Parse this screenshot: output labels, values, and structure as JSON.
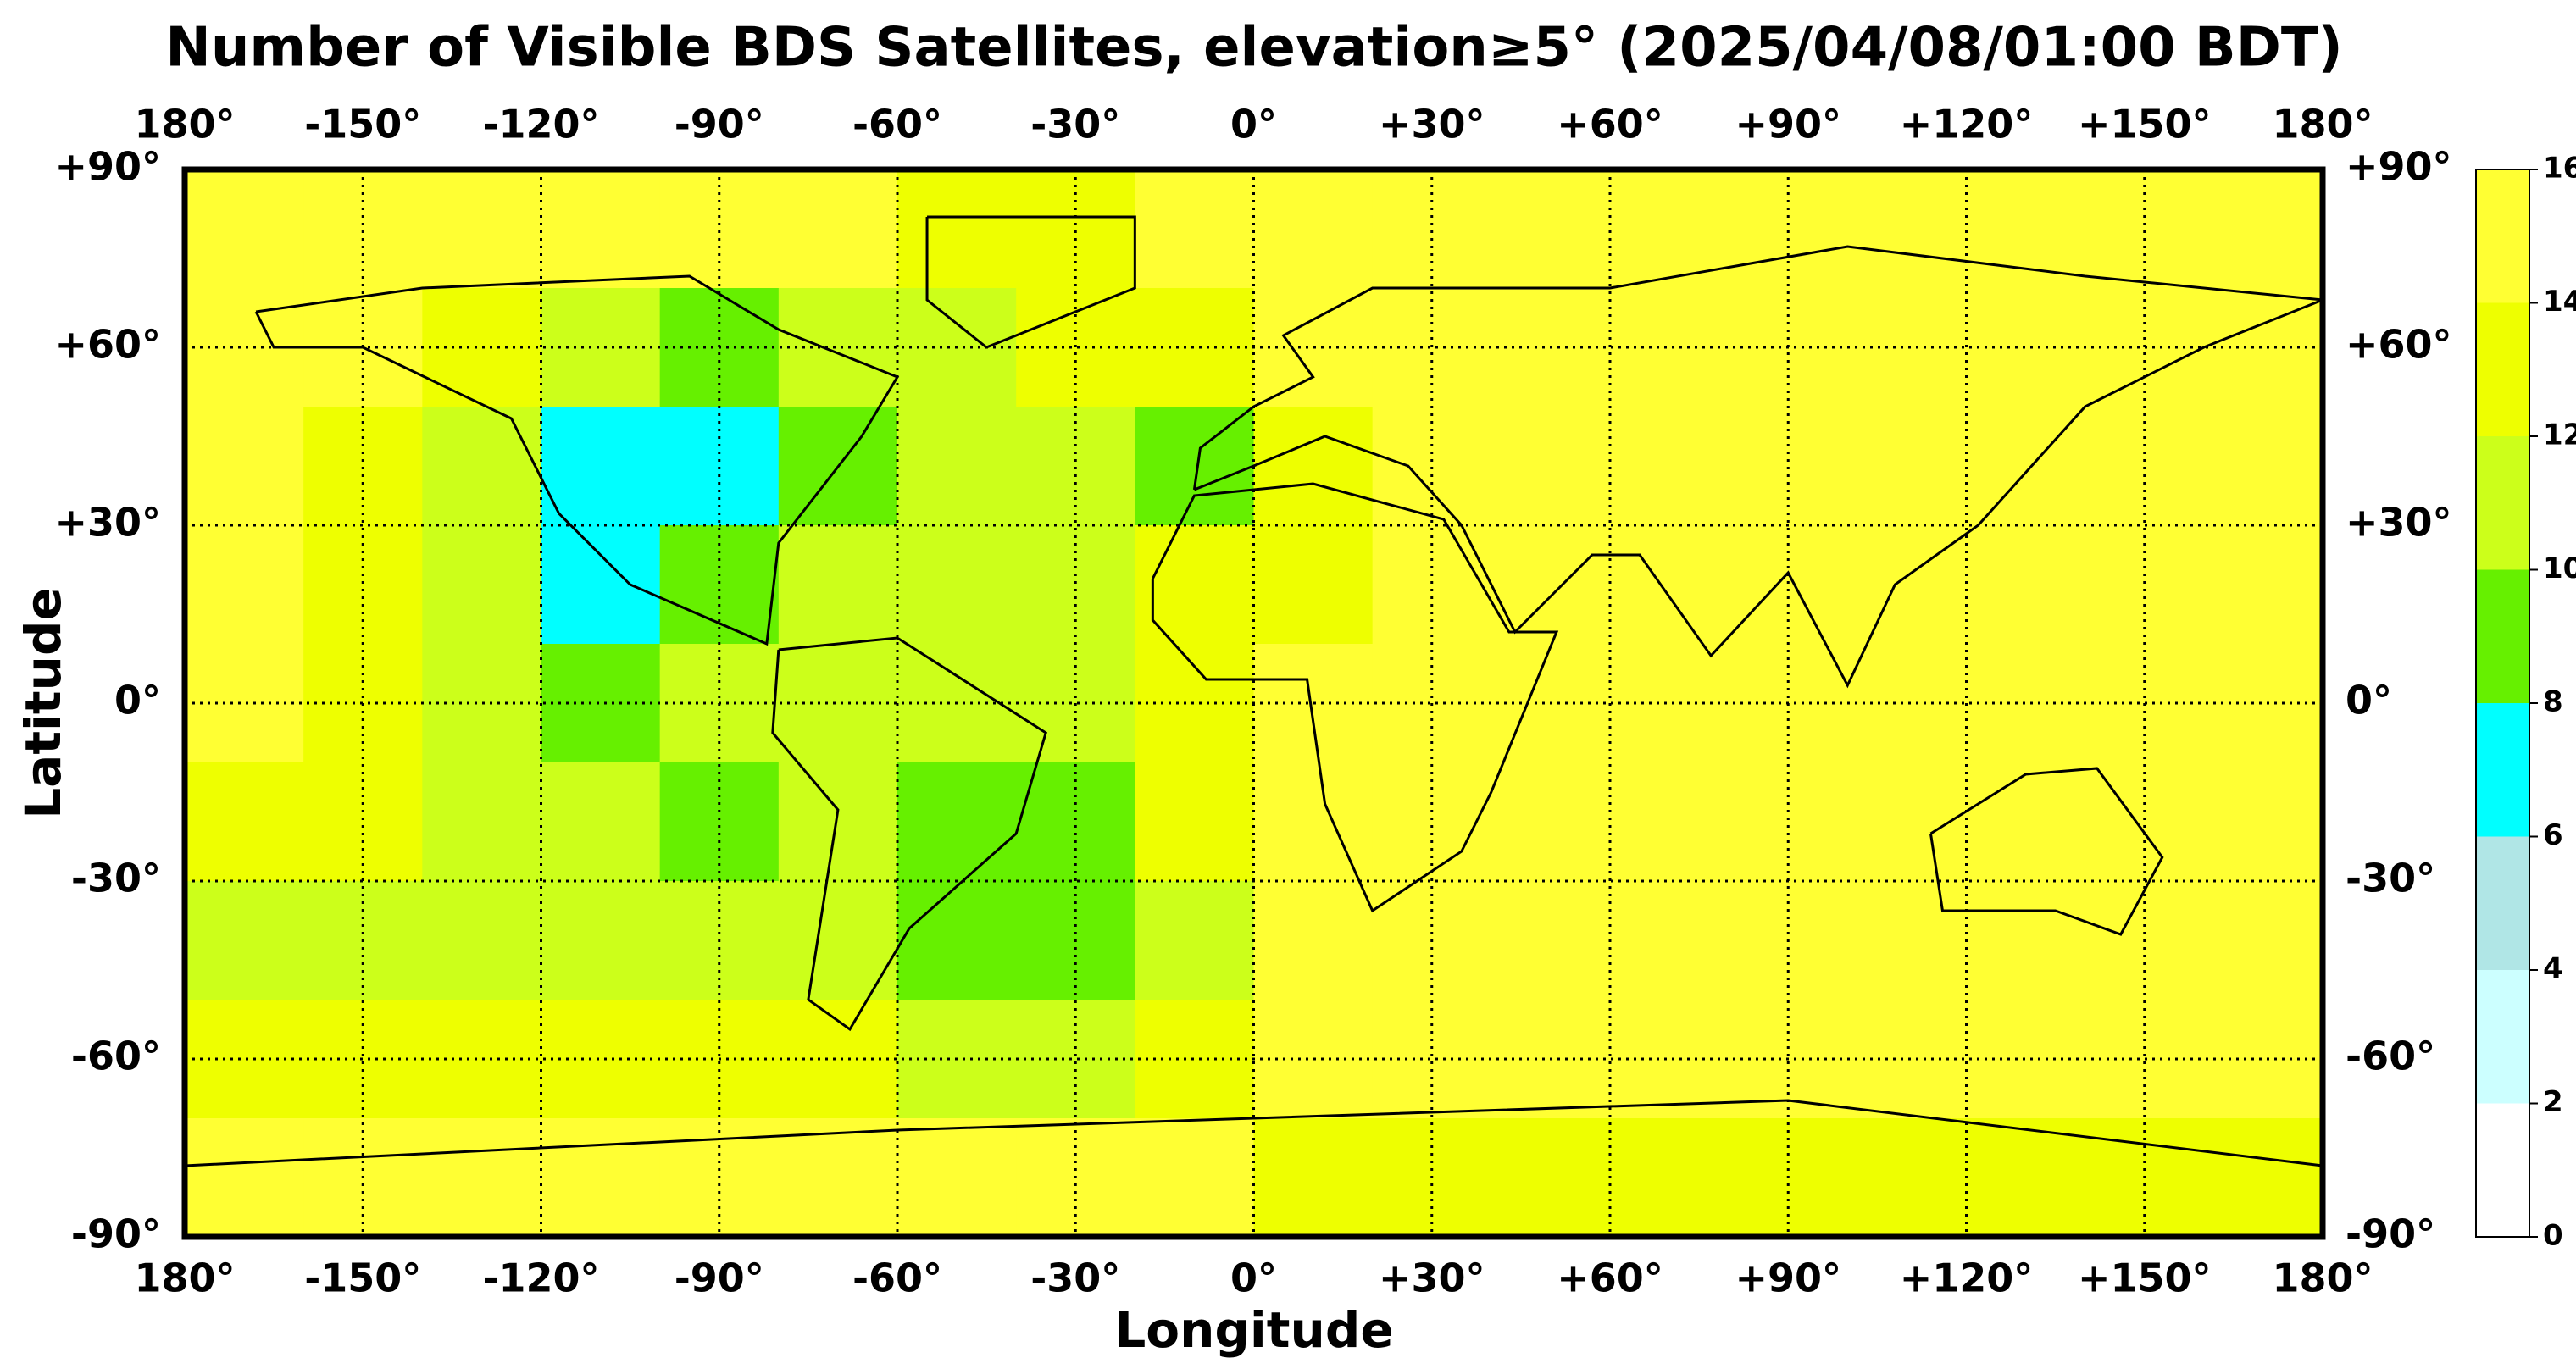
{
  "chart_data": {
    "type": "heatmap",
    "title": "Number of Visible BDS Satellites, elevation≥5° (2025/04/08/01:00 BDT)",
    "xlabel": "Longitude",
    "ylabel": "Latitude",
    "xlim": [
      -180,
      180
    ],
    "ylim": [
      -90,
      90
    ],
    "xticks": [
      {
        "value": -180,
        "label": "180°"
      },
      {
        "value": -150,
        "label": "-150°"
      },
      {
        "value": -120,
        "label": "-120°"
      },
      {
        "value": -90,
        "label": "-90°"
      },
      {
        "value": -60,
        "label": "-60°"
      },
      {
        "value": -30,
        "label": "-30°"
      },
      {
        "value": 0,
        "label": "0°"
      },
      {
        "value": 30,
        "label": "+30°"
      },
      {
        "value": 60,
        "label": "+60°"
      },
      {
        "value": 90,
        "label": "+90°"
      },
      {
        "value": 120,
        "label": "+120°"
      },
      {
        "value": 150,
        "label": "+150°"
      },
      {
        "value": 180,
        "label": "180°"
      }
    ],
    "yticks": [
      {
        "value": 90,
        "label": "+90°"
      },
      {
        "value": 60,
        "label": "+60°"
      },
      {
        "value": 30,
        "label": "+30°"
      },
      {
        "value": 0,
        "label": "0°"
      },
      {
        "value": -30,
        "label": "-30°"
      },
      {
        "value": -60,
        "label": "-60°"
      },
      {
        "value": -90,
        "label": "-90°"
      }
    ],
    "grid": true,
    "x_bins": [
      -180,
      -160,
      -140,
      -120,
      -100,
      -80,
      -60,
      -40,
      -20,
      0,
      20,
      40,
      60,
      80,
      100,
      120,
      140,
      160,
      180
    ],
    "y_bins": [
      90,
      70,
      50,
      30,
      10,
      -10,
      -30,
      -50,
      -70,
      -90
    ],
    "values": [
      [
        15,
        15,
        15,
        15,
        15,
        15,
        13,
        13,
        15,
        15,
        15,
        15,
        15,
        15,
        15,
        15,
        15,
        15
      ],
      [
        15,
        15,
        13,
        11,
        9,
        11,
        11,
        13,
        13,
        15,
        15,
        15,
        15,
        15,
        15,
        15,
        15,
        15
      ],
      [
        15,
        13,
        11,
        7,
        7,
        9,
        11,
        11,
        9,
        13,
        15,
        15,
        15,
        15,
        15,
        15,
        15,
        15
      ],
      [
        15,
        13,
        11,
        7,
        9,
        11,
        11,
        11,
        13,
        13,
        15,
        15,
        15,
        15,
        15,
        15,
        15,
        15
      ],
      [
        15,
        13,
        11,
        9,
        11,
        11,
        11,
        11,
        13,
        15,
        15,
        15,
        15,
        15,
        15,
        15,
        15,
        15
      ],
      [
        13,
        13,
        11,
        11,
        9,
        11,
        9,
        9,
        13,
        15,
        15,
        15,
        15,
        15,
        15,
        15,
        15,
        15
      ],
      [
        11,
        11,
        11,
        11,
        11,
        11,
        9,
        9,
        11,
        15,
        15,
        15,
        15,
        15,
        15,
        15,
        15,
        15
      ],
      [
        13,
        13,
        13,
        13,
        13,
        13,
        11,
        11,
        13,
        15,
        15,
        15,
        15,
        15,
        15,
        15,
        15,
        15
      ],
      [
        15,
        15,
        15,
        15,
        15,
        15,
        15,
        15,
        15,
        13,
        13,
        13,
        13,
        13,
        13,
        13,
        13,
        13
      ]
    ],
    "colorbar": {
      "ticks": [
        0,
        2,
        4,
        6,
        8,
        10,
        12,
        14,
        16
      ],
      "colors": [
        "#ffffff",
        "#ccffff",
        "#b0e6e6",
        "#00ffff",
        "#66f000",
        "#ccff1a",
        "#eeff00",
        "#ffff33"
      ]
    }
  }
}
